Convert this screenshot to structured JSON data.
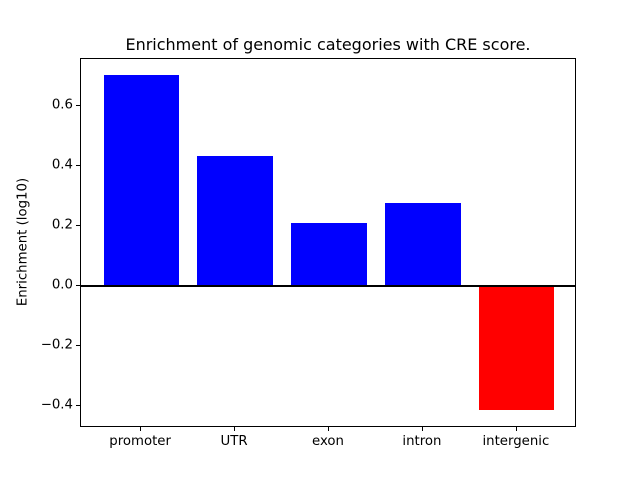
{
  "chart_data": {
    "type": "bar",
    "title": "Enrichment of genomic categories with CRE score.",
    "xlabel": "",
    "ylabel": "Enrichment (log10)",
    "categories": [
      "promoter",
      "UTR",
      "exon",
      "intron",
      "intergenic"
    ],
    "values": [
      0.703,
      0.434,
      0.21,
      0.278,
      -0.414
    ],
    "bar_colors": [
      "#0000ff",
      "#0000ff",
      "#0000ff",
      "#0000ff",
      "#ff0000"
    ],
    "positive_color": "#0000ff",
    "negative_color": "#ff0000",
    "bar_width": 0.8,
    "xlim": [
      -0.64,
      4.64
    ],
    "ylim": [
      -0.474,
      0.758
    ],
    "yticks": [
      {
        "value": 0.6,
        "label": "0.6"
      },
      {
        "value": 0.4,
        "label": "0.4"
      },
      {
        "value": 0.2,
        "label": "0.2"
      },
      {
        "value": 0.0,
        "label": "0.0"
      },
      {
        "value": -0.2,
        "label": "−0.2"
      },
      {
        "value": -0.4,
        "label": "−0.4"
      }
    ],
    "zero_line": true,
    "grid": false,
    "legend": null,
    "background_color": "#ffffff",
    "axis_color": "#000000"
  }
}
